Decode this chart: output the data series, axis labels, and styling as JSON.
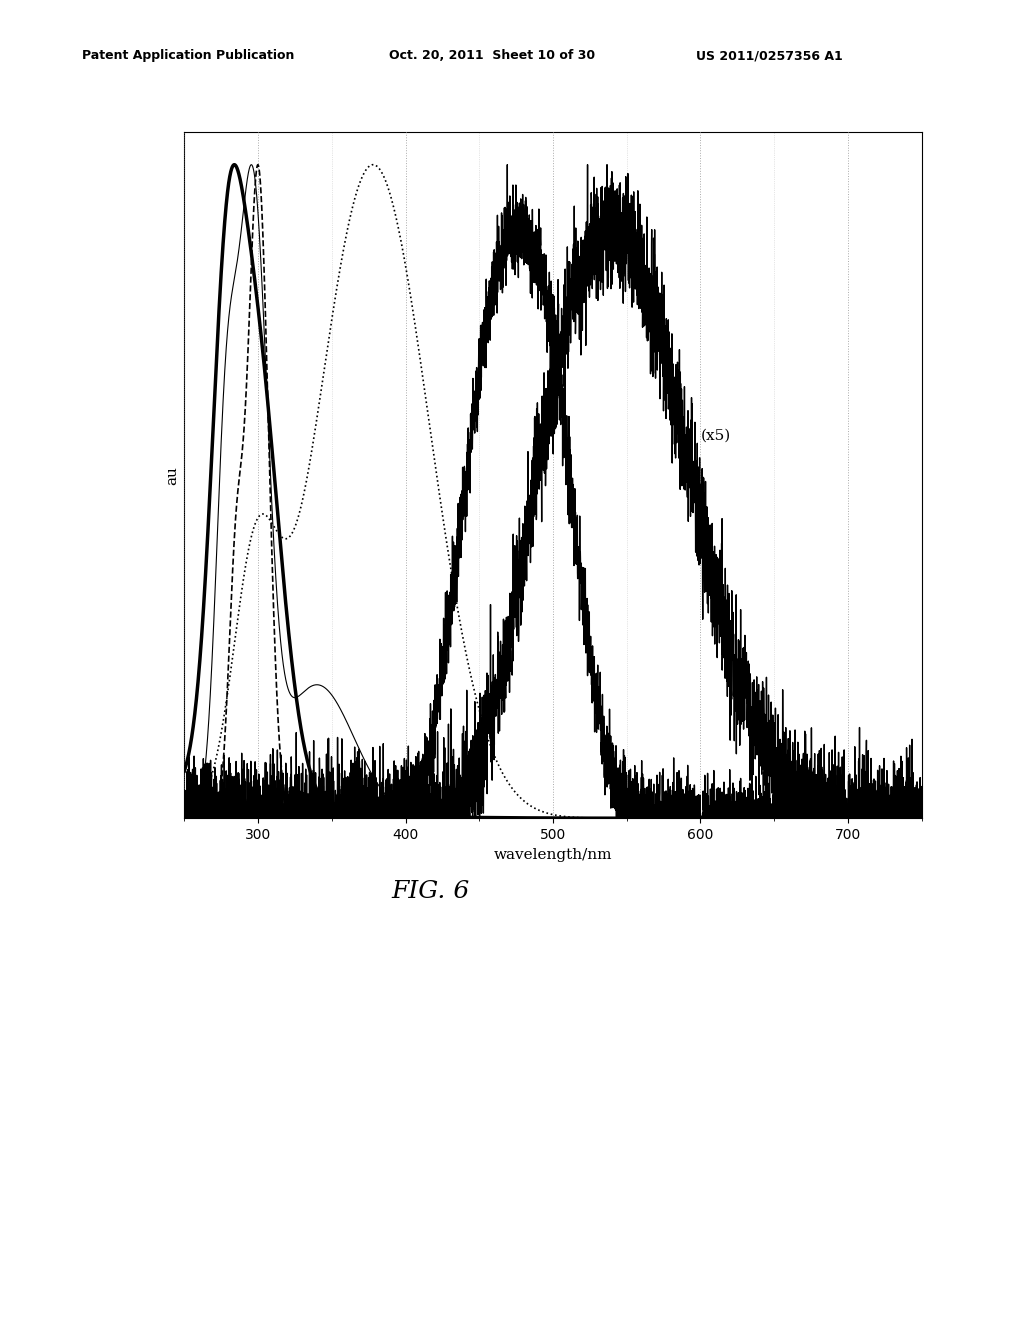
{
  "header_left": "Patent Application Publication",
  "header_mid": "Oct. 20, 2011  Sheet 10 of 30",
  "header_right": "US 2011/0257356 A1",
  "xlabel": "wavelength/nm",
  "ylabel": "au",
  "xmin": 250,
  "xmax": 750,
  "annotation": "(x5)",
  "fig_label": "FIG. 6",
  "background_color": "#ffffff",
  "line_color": "#000000",
  "grid_color": "#aaaaaa"
}
